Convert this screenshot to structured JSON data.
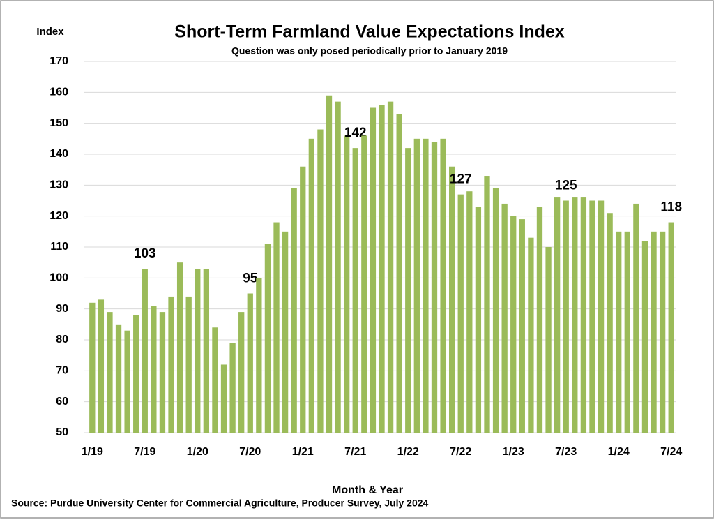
{
  "chart_data": {
    "type": "bar",
    "title": "Short-Term Farmland Value Expectations Index",
    "subtitle": "Question was only posed periodically prior to January 2019",
    "y_axis_label": "Index",
    "x_axis_label": "Month & Year",
    "source": "Source: Purdue University Center for Commercial Agriculture, Producer Survey, July 2024",
    "categories": [
      "1/19",
      null,
      null,
      null,
      null,
      null,
      "7/19",
      null,
      null,
      null,
      null,
      null,
      "1/20",
      null,
      null,
      null,
      null,
      null,
      "7/20",
      null,
      null,
      null,
      null,
      null,
      "1/21",
      null,
      null,
      null,
      null,
      null,
      "7/21",
      null,
      null,
      null,
      null,
      null,
      "1/22",
      null,
      null,
      null,
      null,
      null,
      "7/22",
      null,
      null,
      null,
      null,
      null,
      "1/23",
      null,
      null,
      null,
      null,
      null,
      "7/23",
      null,
      null,
      null,
      null,
      null,
      "1/24",
      null,
      null,
      null,
      null,
      null,
      "7/24"
    ],
    "values": [
      92,
      93,
      89,
      85,
      83,
      88,
      103,
      91,
      89,
      94,
      105,
      94,
      103,
      103,
      84,
      72,
      79,
      89,
      95,
      100,
      111,
      118,
      115,
      129,
      136,
      145,
      148,
      159,
      157,
      146,
      142,
      146,
      155,
      156,
      157,
      153,
      142,
      145,
      145,
      144,
      145,
      136,
      127,
      128,
      123,
      133,
      129,
      124,
      120,
      119,
      113,
      123,
      110,
      126,
      125,
      126,
      126,
      125,
      125,
      121,
      115,
      115,
      124,
      112,
      115,
      115,
      118
    ],
    "value_labels": [
      null,
      null,
      null,
      null,
      null,
      null,
      "103",
      null,
      null,
      null,
      null,
      null,
      null,
      null,
      null,
      null,
      null,
      null,
      "95",
      null,
      null,
      null,
      null,
      null,
      null,
      null,
      null,
      null,
      null,
      null,
      "142",
      null,
      null,
      null,
      null,
      null,
      null,
      null,
      null,
      null,
      null,
      null,
      "127",
      null,
      null,
      null,
      null,
      null,
      null,
      null,
      null,
      null,
      null,
      null,
      "125",
      null,
      null,
      null,
      null,
      null,
      null,
      null,
      null,
      null,
      null,
      null,
      "118"
    ],
    "color": "#9bbb59",
    "ylim": [
      50,
      170
    ],
    "yticks": [
      50,
      60,
      70,
      80,
      90,
      100,
      110,
      120,
      130,
      140,
      150,
      160,
      170
    ],
    "grid": true
  }
}
